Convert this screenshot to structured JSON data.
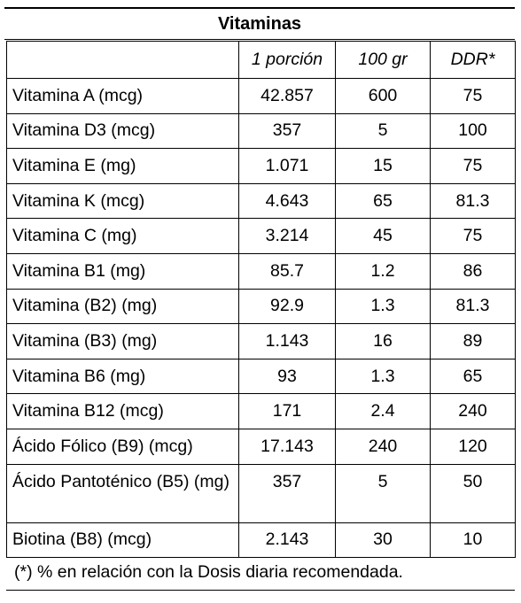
{
  "title": "Vitaminas",
  "columns": [
    "",
    "1 porción",
    "100 gr",
    "DDR*"
  ],
  "rows": [
    {
      "name": "Vitamina A (mcg)",
      "portion": "42.857",
      "per100": "600",
      "ddr": "75"
    },
    {
      "name": "Vitamina D3 (mcg)",
      "portion": "357",
      "per100": "5",
      "ddr": "100"
    },
    {
      "name": "Vitamina E (mg)",
      "portion": "1.071",
      "per100": "15",
      "ddr": "75"
    },
    {
      "name": "Vitamina K (mcg)",
      "portion": "4.643",
      "per100": "65",
      "ddr": "81.3"
    },
    {
      "name": "Vitamina C (mg)",
      "portion": "3.214",
      "per100": "45",
      "ddr": "75"
    },
    {
      "name": "Vitamina B1 (mg)",
      "portion": "85.7",
      "per100": "1.2",
      "ddr": "86"
    },
    {
      "name": "Vitamina (B2) (mg)",
      "portion": "92.9",
      "per100": "1.3",
      "ddr": "81.3"
    },
    {
      "name": "Vitamina (B3) (mg)",
      "portion": "1.143",
      "per100": "16",
      "ddr": "89"
    },
    {
      "name": "Vitamina B6 (mg)",
      "portion": "93",
      "per100": "1.3",
      "ddr": "65"
    },
    {
      "name": "Vitamina B12 (mcg)",
      "portion": "171",
      "per100": "2.4",
      "ddr": "240"
    },
    {
      "name": "Ácido Fólico (B9) (mcg)",
      "portion": "17.143",
      "per100": "240",
      "ddr": "120"
    },
    {
      "name": "Ácido Pantoténico (B5) (mg)",
      "portion": "357",
      "per100": "5",
      "ddr": "50"
    },
    {
      "name": "Biotina (B8) (mcg)",
      "portion": "2.143",
      "per100": "30",
      "ddr": "10"
    }
  ],
  "footnote": "(*) % en relación con la Dosis diaria recomendada."
}
